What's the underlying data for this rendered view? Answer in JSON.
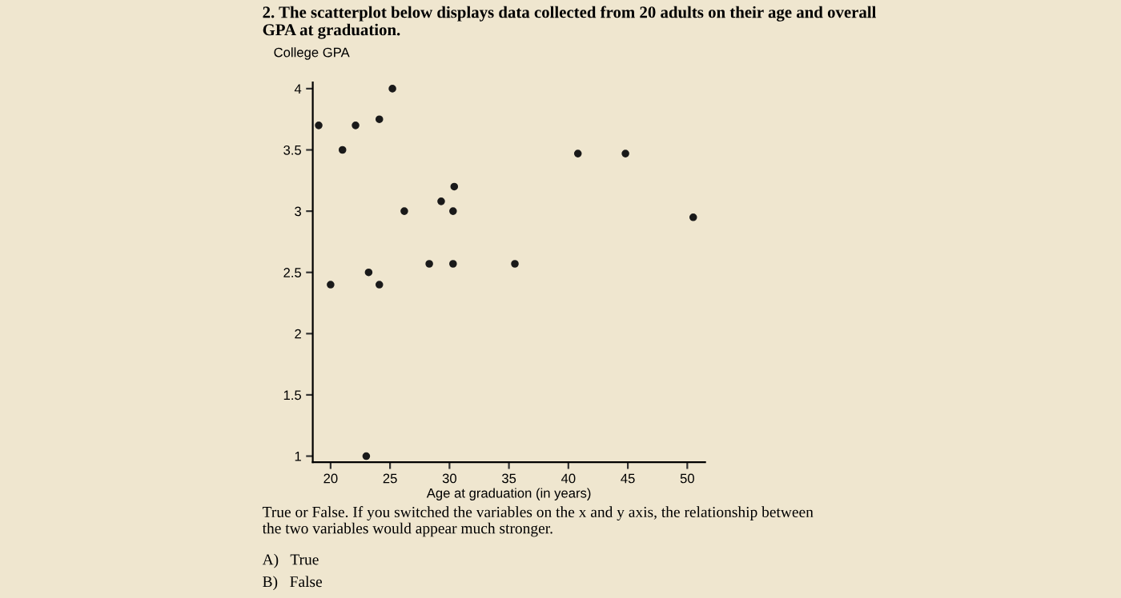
{
  "chart_data": {
    "type": "scatter",
    "title": "2. The scatterplot below displays data collected from 20 adults on their age and overall\nGPA at graduation.",
    "ylabel": "College GPA",
    "xlabel": "Age at graduation (in years)",
    "x": [
      25.2,
      19,
      22.1,
      24.1,
      21,
      40.8,
      44.8,
      30.4,
      29.3,
      26.2,
      30.3,
      50.5,
      20,
      23.2,
      24.1,
      28.3,
      30.3,
      35.5,
      23
    ],
    "values": [
      4.0,
      3.7,
      3.7,
      3.75,
      3.5,
      3.47,
      3.47,
      3.2,
      3.08,
      3.0,
      3.0,
      2.95,
      2.4,
      2.5,
      2.4,
      2.57,
      2.57,
      2.57,
      1.0
    ],
    "color": "#1a1a1a",
    "marker": "circle",
    "grid": false,
    "xlim": [
      18.5,
      51.5
    ],
    "ylim": [
      0.95,
      4.05
    ],
    "xticks": [
      20,
      25,
      30,
      35,
      40,
      45,
      50
    ],
    "yticks": [
      1,
      1.5,
      2,
      2.5,
      3,
      3.5,
      4
    ],
    "annotations": [
      "True or False. If you switched the variables on the x and y axis, the relationship between\nthe two variables would appear much stronger.",
      "A)   True",
      "B)   False"
    ]
  }
}
